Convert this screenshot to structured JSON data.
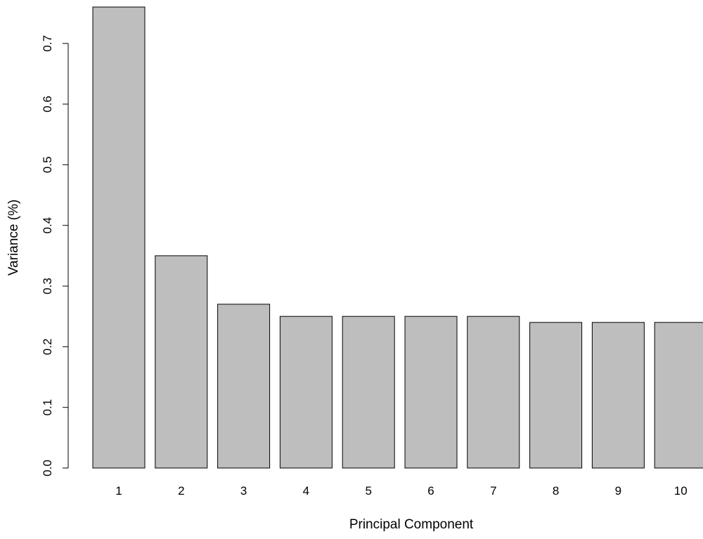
{
  "chart_data": {
    "type": "bar",
    "title": "",
    "xlabel": "Principal Component",
    "ylabel": "Variance (%)",
    "categories": [
      "1",
      "2",
      "3",
      "4",
      "5",
      "6",
      "7",
      "8",
      "9",
      "10"
    ],
    "values": [
      0.76,
      0.35,
      0.27,
      0.25,
      0.25,
      0.25,
      0.25,
      0.24,
      0.24,
      0.24
    ],
    "ylim": [
      0,
      0.76
    ],
    "yticks": [
      "0.0",
      "0.1",
      "0.2",
      "0.3",
      "0.4",
      "0.5",
      "0.6",
      "0.7"
    ],
    "grid": false,
    "bar_color": "#bebebe",
    "edge_color": "#000000"
  }
}
